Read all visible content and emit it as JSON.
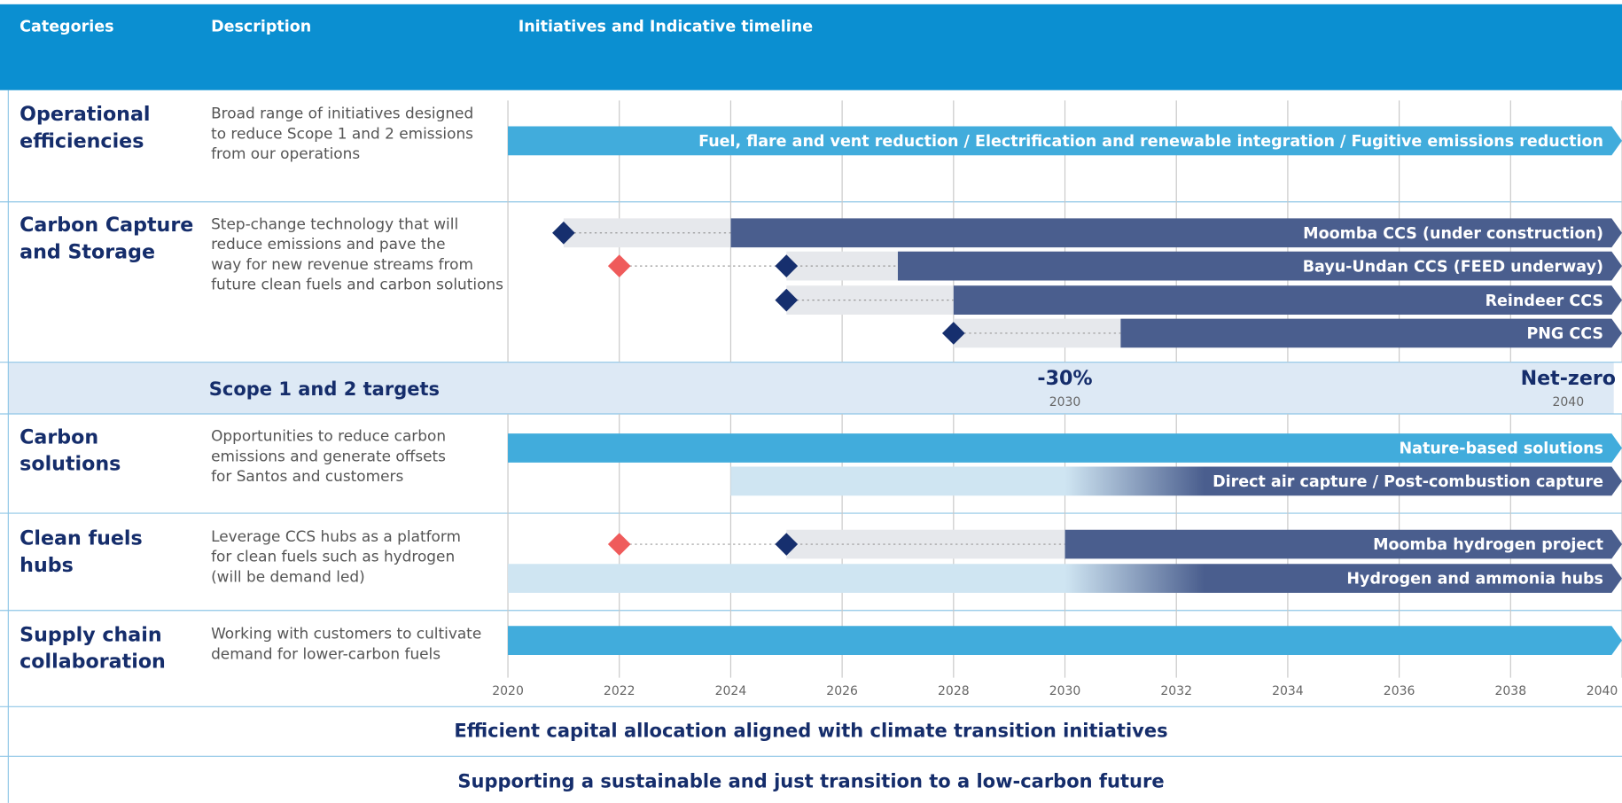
{
  "header": {
    "categories": "Categories",
    "description": "Description",
    "timeline": "Initiatives and Indicative timeline"
  },
  "timeline": {
    "xlim": [
      2020,
      2040
    ],
    "xticks": [
      2020,
      2022,
      2024,
      2026,
      2028,
      2030,
      2032,
      2034,
      2036,
      2038,
      2040
    ]
  },
  "rows": [
    {
      "category_lines": [
        "Operational",
        "efficiencies"
      ],
      "description_lines": [
        "Broad range of initiatives designed",
        "to reduce Scope 1 and 2 emissions",
        "from our operations"
      ],
      "bars": [
        {
          "label": "Fuel, flare and vent reduction / Electrification and renewable integration / Fugitive emissions reduction",
          "segments": [
            {
              "start": 2020,
              "end": 2040,
              "color": "#41acdc"
            }
          ],
          "milestones": []
        }
      ]
    },
    {
      "category_lines": [
        "Carbon Capture",
        "and Storage"
      ],
      "description_lines": [
        "Step-change technology that will",
        "reduce emissions and pave the",
        "way for new revenue streams from",
        "future clean fuels and carbon solutions"
      ],
      "bars": [
        {
          "label": "Moomba CCS (under construction)",
          "segments": [
            {
              "start": 2021,
              "end": 2024,
              "color": "#e6e8ec"
            },
            {
              "start": 2024,
              "end": 2040,
              "color": "#4a5e8e"
            }
          ],
          "milestones": [
            {
              "year": 2021,
              "color": "#162f6e"
            }
          ]
        },
        {
          "label": "Bayu-Undan CCS (FEED underway)",
          "segments": [
            {
              "start": 2025,
              "end": 2027,
              "color": "#e6e8ec"
            },
            {
              "start": 2027,
              "end": 2040,
              "color": "#4a5e8e"
            }
          ],
          "milestones": [
            {
              "year": 2022,
              "color": "#ef5b5b"
            },
            {
              "year": 2025,
              "color": "#162f6e"
            }
          ]
        },
        {
          "label": "Reindeer CCS",
          "segments": [
            {
              "start": 2025,
              "end": 2028,
              "color": "#e6e8ec"
            },
            {
              "start": 2028,
              "end": 2040,
              "color": "#4a5e8e"
            }
          ],
          "milestones": [
            {
              "year": 2025,
              "color": "#162f6e"
            }
          ]
        },
        {
          "label": "PNG CCS",
          "segments": [
            {
              "start": 2028,
              "end": 2031,
              "color": "#e6e8ec"
            },
            {
              "start": 2031,
              "end": 2040,
              "color": "#4a5e8e"
            }
          ],
          "milestones": [
            {
              "year": 2028,
              "color": "#162f6e"
            }
          ]
        }
      ]
    },
    {
      "category_lines": [
        "Carbon",
        "solutions"
      ],
      "description_lines": [
        "Opportunities to reduce carbon",
        "emissions and generate offsets",
        "for Santos and customers"
      ],
      "bars": [
        {
          "label": "Nature-based solutions",
          "segments": [
            {
              "start": 2020,
              "end": 2040,
              "color": "#41acdc"
            }
          ],
          "milestones": []
        },
        {
          "label": "Direct air capture / Post-combustion capture",
          "segments": [
            {
              "start": 2024,
              "end": 2040,
              "color": "#cfe5f2",
              "fade": {
                "start": 2030,
                "end": 2032.5,
                "color": "#4a5e8e"
              }
            }
          ],
          "milestones": []
        }
      ]
    },
    {
      "category_lines": [
        "Clean fuels",
        "hubs"
      ],
      "description_lines": [
        "Leverage CCS hubs as a platform",
        "for clean fuels such as hydrogen",
        "(will be demand led)"
      ],
      "bars": [
        {
          "label": "Moomba hydrogen project",
          "segments": [
            {
              "start": 2025,
              "end": 2030,
              "color": "#e6e8ec"
            },
            {
              "start": 2030,
              "end": 2040,
              "color": "#4a5e8e"
            }
          ],
          "milestones": [
            {
              "year": 2022,
              "color": "#ef5b5b"
            },
            {
              "year": 2025,
              "color": "#162f6e"
            }
          ]
        },
        {
          "label": "Hydrogen and ammonia hubs",
          "segments": [
            {
              "start": 2020,
              "end": 2040,
              "color": "#cfe5f2",
              "fade": {
                "start": 2030,
                "end": 2032.5,
                "color": "#4a5e8e"
              }
            }
          ],
          "milestones": []
        }
      ]
    },
    {
      "category_lines": [
        "Supply chain",
        "collaboration"
      ],
      "description_lines": [
        "Working with customers to cultivate",
        "demand for lower-carbon fuels"
      ],
      "bars": [
        {
          "label": null,
          "segments": [
            {
              "start": 2020,
              "end": 2040,
              "color": "#41acdc"
            }
          ],
          "milestones": []
        }
      ]
    }
  ],
  "targets": {
    "title": "Scope 1 and 2 targets",
    "items": [
      {
        "label": "-30%",
        "year": 2030
      },
      {
        "label": "Net-zero",
        "year": 2040
      }
    ]
  },
  "footer": [
    "Efficient capital allocation aligned with climate transition initiatives",
    "Supporting a sustainable and just transition to a low-carbon future"
  ]
}
